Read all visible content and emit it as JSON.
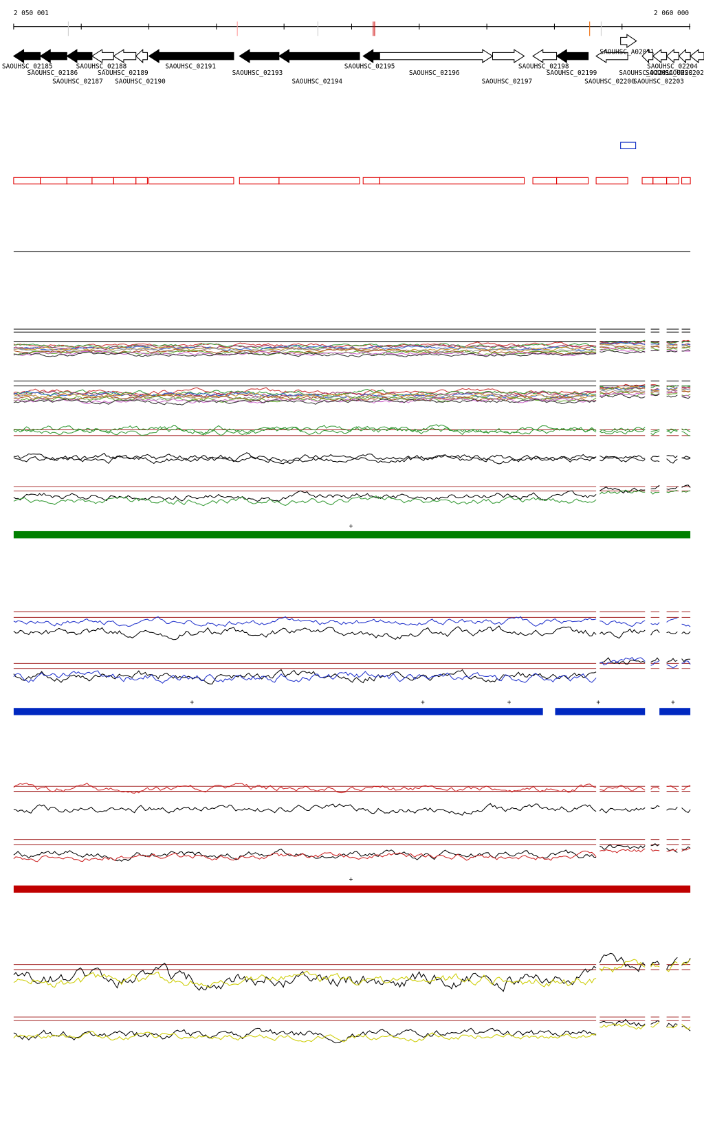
{
  "ruler": {
    "start": "2 050 001",
    "end": "2 060 000"
  },
  "genes": [
    "SAOUHSC_02185",
    "SAOUHSC_02186",
    "SAOUHSC_02187",
    "SAOUHSC_02188",
    "SAOUHSC_02189",
    "SAOUHSC_02190",
    "SAOUHSC_02191",
    "SAOUHSC_02193",
    "SAOUHSC_02194",
    "SAOUHSC_02195",
    "SAOUHSC_02196",
    "SAOUHSC_02197",
    "SAOUHSC_02198",
    "SAOUHSC_02199",
    "SAOUHSC_02200",
    "SAOUHSC_A02091",
    "SAOUHSC_02201",
    "SAOUHSC_02202",
    "SAOUHSC_02203",
    "SAOUHSC_02204",
    "SAOUHSC_02205"
  ],
  "markers": [
    "+",
    "+",
    "+",
    "+",
    "+",
    "+",
    "+"
  ]
}
